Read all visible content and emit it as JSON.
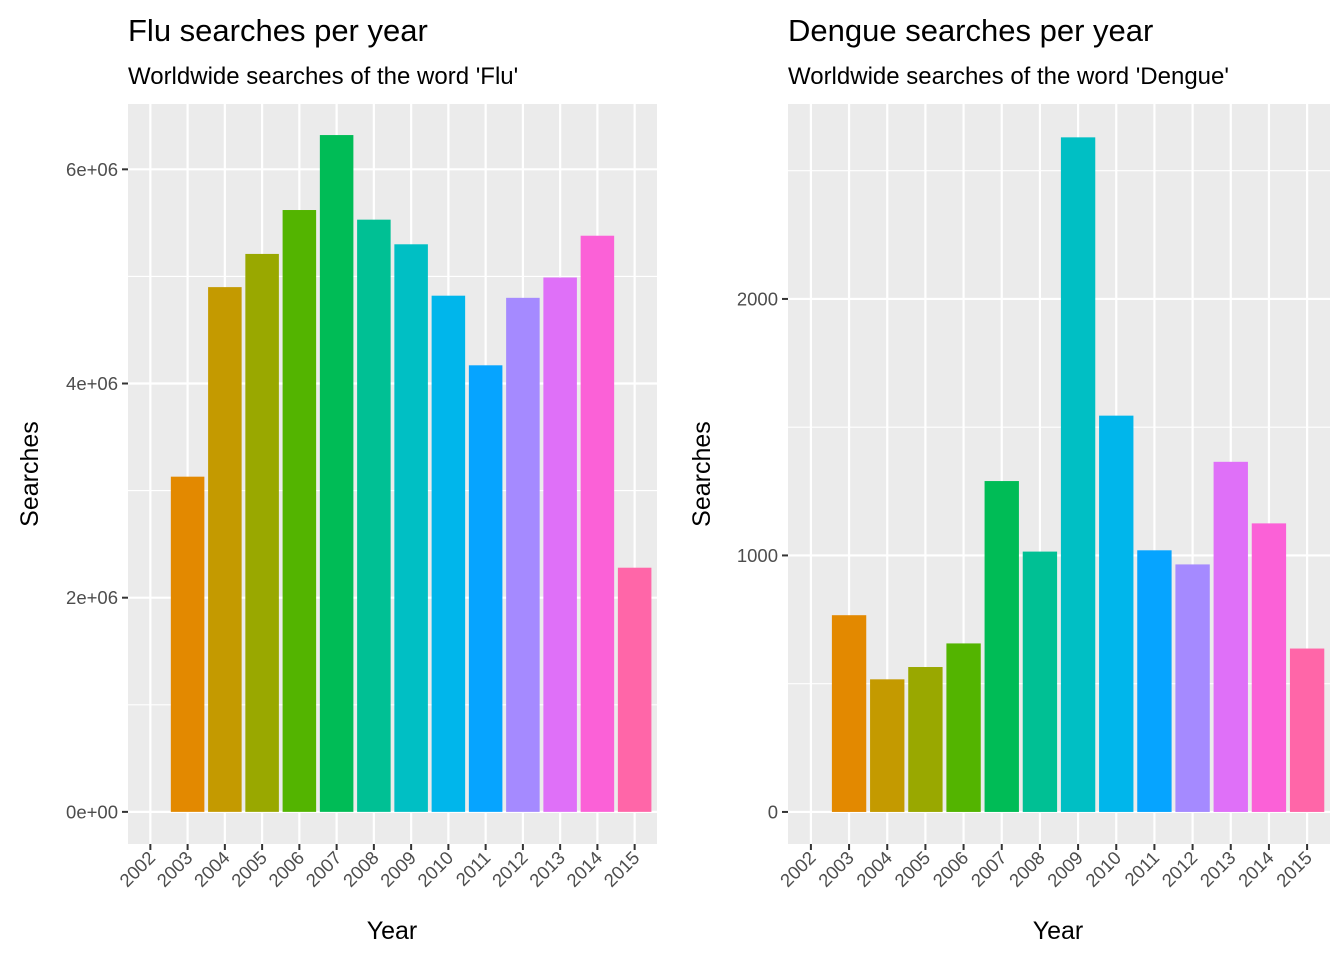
{
  "chart_data": [
    {
      "type": "bar",
      "title": "Flu searches per year",
      "subtitle": "Worldwide searches of the word 'Flu'",
      "xlabel": "Year",
      "ylabel": "Searches",
      "categories": [
        "2002",
        "2003",
        "2004",
        "2005",
        "2006",
        "2007",
        "2008",
        "2009",
        "2010",
        "2011",
        "2012",
        "2013",
        "2014",
        "2015"
      ],
      "values": [
        null,
        3130000,
        4900000,
        5210000,
        5620000,
        6320000,
        5530000,
        5300000,
        4820000,
        4170000,
        4800000,
        4990000,
        5380000,
        2280000
      ],
      "colors": [
        "#F8766D",
        "#E38900",
        "#C49A00",
        "#99A800",
        "#53B400",
        "#00BC56",
        "#00C094",
        "#00BFC4",
        "#00B6EB",
        "#06A4FF",
        "#A58AFF",
        "#DF70F8",
        "#FB61D7",
        "#FF66A8"
      ],
      "ylim": [
        -300000,
        6610000
      ],
      "yticks": [
        0,
        2000000,
        4000000,
        6000000
      ],
      "ytick_labels": [
        "0e+00",
        "2e+06",
        "4e+06",
        "6e+06"
      ],
      "grid": true,
      "panel_background": "#EBEBEB",
      "grid_color": "#FFFFFF"
    },
    {
      "type": "bar",
      "title": "Dengue searches per year",
      "subtitle": "Worldwide searches of the word 'Dengue'",
      "xlabel": "Year",
      "ylabel": "Searches",
      "categories": [
        "2002",
        "2003",
        "2004",
        "2005",
        "2006",
        "2007",
        "2008",
        "2009",
        "2010",
        "2011",
        "2012",
        "2013",
        "2014",
        "2015"
      ],
      "values": [
        null,
        767,
        517,
        565,
        657,
        1290,
        1015,
        2630,
        1545,
        1020,
        965,
        1365,
        1125,
        637
      ],
      "colors": [
        "#F8766D",
        "#E38900",
        "#C49A00",
        "#99A800",
        "#53B400",
        "#00BC56",
        "#00C094",
        "#00BFC4",
        "#00B6EB",
        "#06A4FF",
        "#A58AFF",
        "#DF70F8",
        "#FB61D7",
        "#FF66A8"
      ],
      "ylim": [
        -125,
        2760
      ],
      "yticks": [
        0,
        1000,
        2000
      ],
      "ytick_labels": [
        "0",
        "1000",
        "2000"
      ],
      "grid": true,
      "panel_background": "#EBEBEB",
      "grid_color": "#FFFFFF"
    }
  ]
}
